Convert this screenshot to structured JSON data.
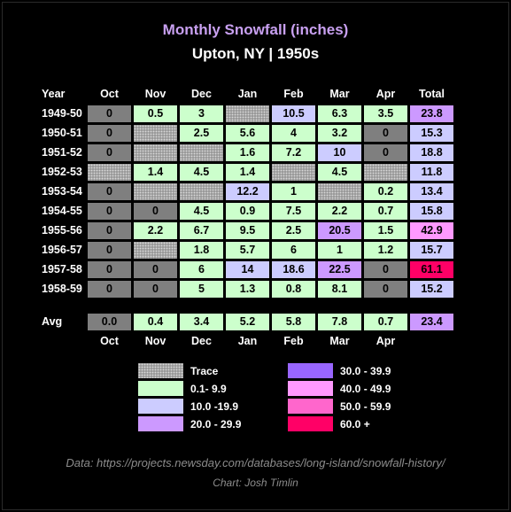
{
  "title": "Monthly Snowfall (inches)",
  "subtitle": "Upton, NY | 1950s",
  "header": {
    "label": "Year",
    "months": [
      "Oct",
      "Nov",
      "Dec",
      "Jan",
      "Feb",
      "Mar",
      "Apr"
    ],
    "total": "Total"
  },
  "avg_label": "Avg",
  "colors": {
    "trace": "#9a9a9a",
    "zero": "#7f7f7f",
    "b1": "#ccffcc",
    "b10": "#ccccff",
    "b20": "#cc99ff",
    "b30": "#9966ff",
    "b40": "#ff99ff",
    "b50": "#ff66cc",
    "b60": "#ff0066"
  },
  "legend": [
    {
      "key": "trace",
      "label": "Trace"
    },
    {
      "key": "b30",
      "label": "30.0 - 39.9"
    },
    {
      "key": "b1",
      "label": "0.1- 9.9"
    },
    {
      "key": "b40",
      "label": "40.0 - 49.9"
    },
    {
      "key": "b10",
      "label": "10.0 -19.9"
    },
    {
      "key": "b50",
      "label": "50.0 - 59.9"
    },
    {
      "key": "b20",
      "label": "20.0 - 29.9"
    },
    {
      "key": "b60",
      "label": "60.0 +"
    }
  ],
  "source": "Data: https://projects.newsday.com/databases/long-island/snowfall-history/",
  "credit": "Chart: Josh Timlin",
  "chart_data": {
    "type": "table",
    "title": "Monthly Snowfall (inches)",
    "subtitle": "Upton, NY | 1950s",
    "columns": [
      "Oct",
      "Nov",
      "Dec",
      "Jan",
      "Feb",
      "Mar",
      "Apr",
      "Total"
    ],
    "rows": [
      {
        "year": "1949-50",
        "values": [
          "0",
          "0.5",
          "3",
          "T",
          "10.5",
          "6.3",
          "3.5",
          "23.8"
        ]
      },
      {
        "year": "1950-51",
        "values": [
          "0",
          "T",
          "2.5",
          "5.6",
          "4",
          "3.2",
          "0",
          "15.3"
        ]
      },
      {
        "year": "1951-52",
        "values": [
          "0",
          "T",
          "T",
          "1.6",
          "7.2",
          "10",
          "0",
          "18.8"
        ]
      },
      {
        "year": "1952-53",
        "values": [
          "T",
          "1.4",
          "4.5",
          "1.4",
          "T",
          "4.5",
          "T",
          "11.8"
        ]
      },
      {
        "year": "1953-54",
        "values": [
          "0",
          "T",
          "T",
          "12.2",
          "1",
          "T",
          "0.2",
          "13.4"
        ]
      },
      {
        "year": "1954-55",
        "values": [
          "0",
          "0",
          "4.5",
          "0.9",
          "7.5",
          "2.2",
          "0.7",
          "15.8"
        ]
      },
      {
        "year": "1955-56",
        "values": [
          "0",
          "2.2",
          "6.7",
          "9.5",
          "2.5",
          "20.5",
          "1.5",
          "42.9"
        ]
      },
      {
        "year": "1956-57",
        "values": [
          "0",
          "T",
          "1.8",
          "5.7",
          "6",
          "1",
          "1.2",
          "15.7"
        ]
      },
      {
        "year": "1957-58",
        "values": [
          "0",
          "0",
          "6",
          "14",
          "18.6",
          "22.5",
          "0",
          "61.1"
        ]
      },
      {
        "year": "1958-59",
        "values": [
          "0",
          "0",
          "5",
          "1.3",
          "0.8",
          "8.1",
          "0",
          "15.2"
        ]
      }
    ],
    "avg": [
      "0.0",
      "0.4",
      "3.4",
      "5.2",
      "5.8",
      "7.8",
      "0.7",
      "23.4"
    ]
  }
}
